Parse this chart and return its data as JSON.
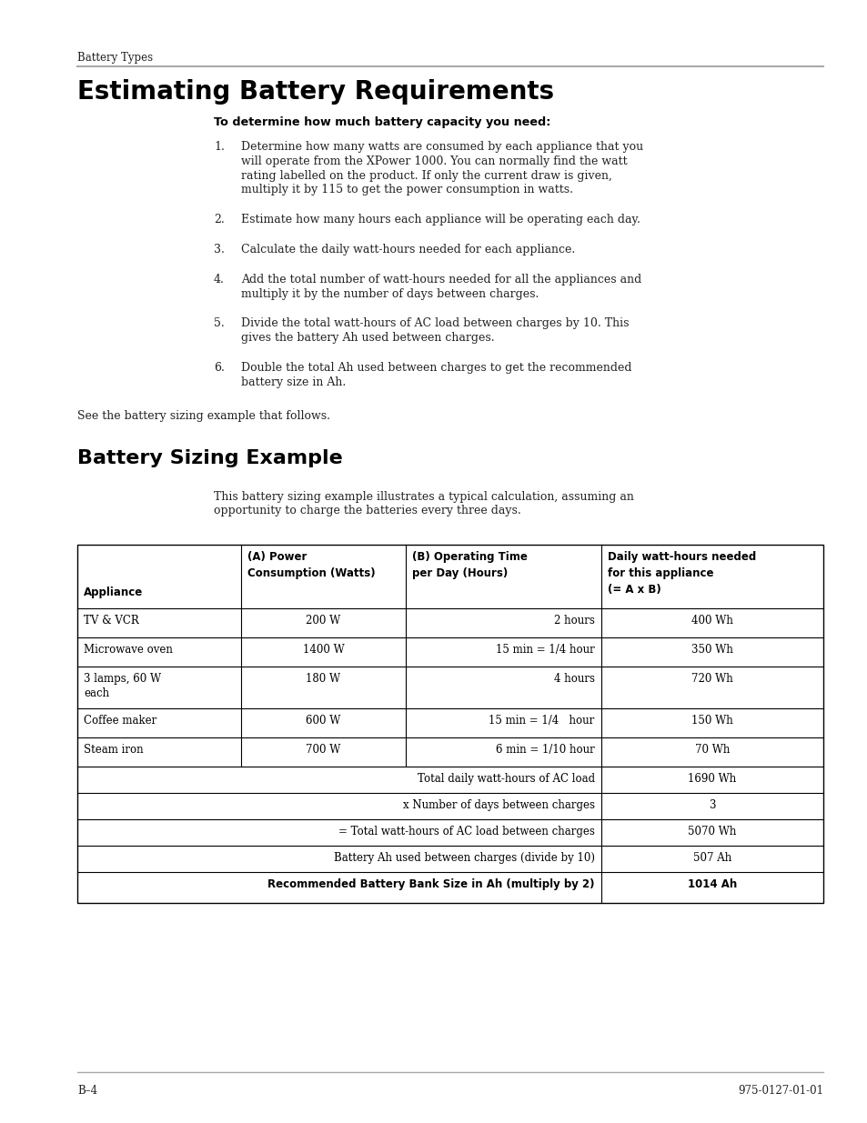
{
  "page_bg": "#ffffff",
  "header_label": "Battery Types",
  "header_line_color": "#aaaaaa",
  "main_title": "Estimating Battery Requirements",
  "bold_intro": "To determine how much battery capacity you need:",
  "numbered_items": [
    "Determine how many watts are consumed by each appliance that you\nwill operate from the XPower 1000. You can normally find the watt\nrating labelled on the product. If only the current draw is given,\nmultiply it by 115 to get the power consumption in watts.",
    "Estimate how many hours each appliance will be operating each day.",
    "Calculate the daily watt-hours needed for each appliance.",
    "Add the total number of watt-hours needed for all the appliances and\nmultiply it by the number of days between charges.",
    "Divide the total watt-hours of AC load between charges by 10. This\ngives the battery Ah used between charges.",
    "Double the total Ah used between charges to get the recommended\nbattery size in Ah."
  ],
  "see_text": "See the battery sizing example that follows.",
  "section2_title": "Battery Sizing Example",
  "section2_intro": "This battery sizing example illustrates a typical calculation, assuming an\nopportunity to charge the batteries every three days.",
  "table_rows": [
    [
      "TV & VCR",
      "200 W",
      "2 hours",
      "400 Wh"
    ],
    [
      "Microwave oven",
      "1400 W",
      "15 min = 1/4 hour",
      "350 Wh"
    ],
    [
      "3 lamps, 60 W\neach",
      "180 W",
      "4 hours",
      "720 Wh"
    ],
    [
      "Coffee maker",
      "600 W",
      "15 min = 1/4   hour",
      "150 Wh"
    ],
    [
      "Steam iron",
      "700 W",
      "6 min = 1/10 hour",
      "70 Wh"
    ]
  ],
  "summary_rows": [
    {
      "label": "Total daily watt-hours of AC load",
      "value": "1690 Wh",
      "bold": false
    },
    {
      "label": "x Number of days between charges",
      "value": "3",
      "bold": false
    },
    {
      "label": "= Total watt-hours of AC load between charges",
      "value": "5070 Wh",
      "bold": false
    },
    {
      "label": "Battery Ah used between charges (divide by 10)",
      "value": "507 Ah",
      "bold": false
    },
    {
      "label": "Recommended Battery Bank Size in Ah (multiply by 2)",
      "value": "1014 Ah",
      "bold": true
    }
  ],
  "footer_left": "B–4",
  "footer_right": "975-0127-01-01",
  "footer_line_color": "#aaaaaa"
}
